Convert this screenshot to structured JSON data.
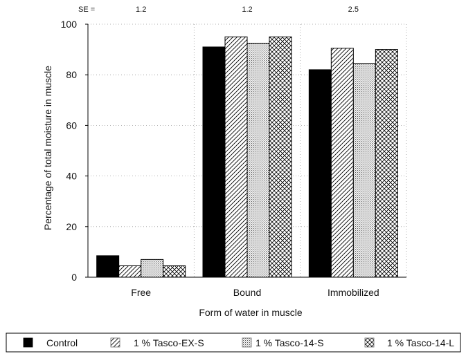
{
  "chart_data": {
    "type": "bar",
    "title": "",
    "xlabel": "Form of water in muscle",
    "ylabel": "Percentage of total moisture in muscle",
    "ylim": [
      0,
      100
    ],
    "yticks": [
      0,
      20,
      40,
      60,
      80,
      100
    ],
    "categories": [
      "Free",
      "Bound",
      "Immobilized"
    ],
    "series": [
      {
        "name": "Control",
        "values": [
          8.5,
          91,
          82
        ],
        "pattern": "solid"
      },
      {
        "name": "1 % Tasco-EX-S",
        "values": [
          4.5,
          95,
          90.5
        ],
        "pattern": "diagonal"
      },
      {
        "name": "1 % Tasco-14-S",
        "values": [
          7,
          92.5,
          84.5
        ],
        "pattern": "dotted"
      },
      {
        "name": "1 % Tasco-14-L",
        "values": [
          4.5,
          95,
          90
        ],
        "pattern": "crosshatch"
      }
    ],
    "se_label": "SE =",
    "se_values": [
      "1.2",
      "1.2",
      "2.5"
    ],
    "grid": true,
    "legend_position": "bottom",
    "colors": {
      "bar_fill": "#000000",
      "axis": "#000000",
      "grid": "#999999"
    }
  }
}
